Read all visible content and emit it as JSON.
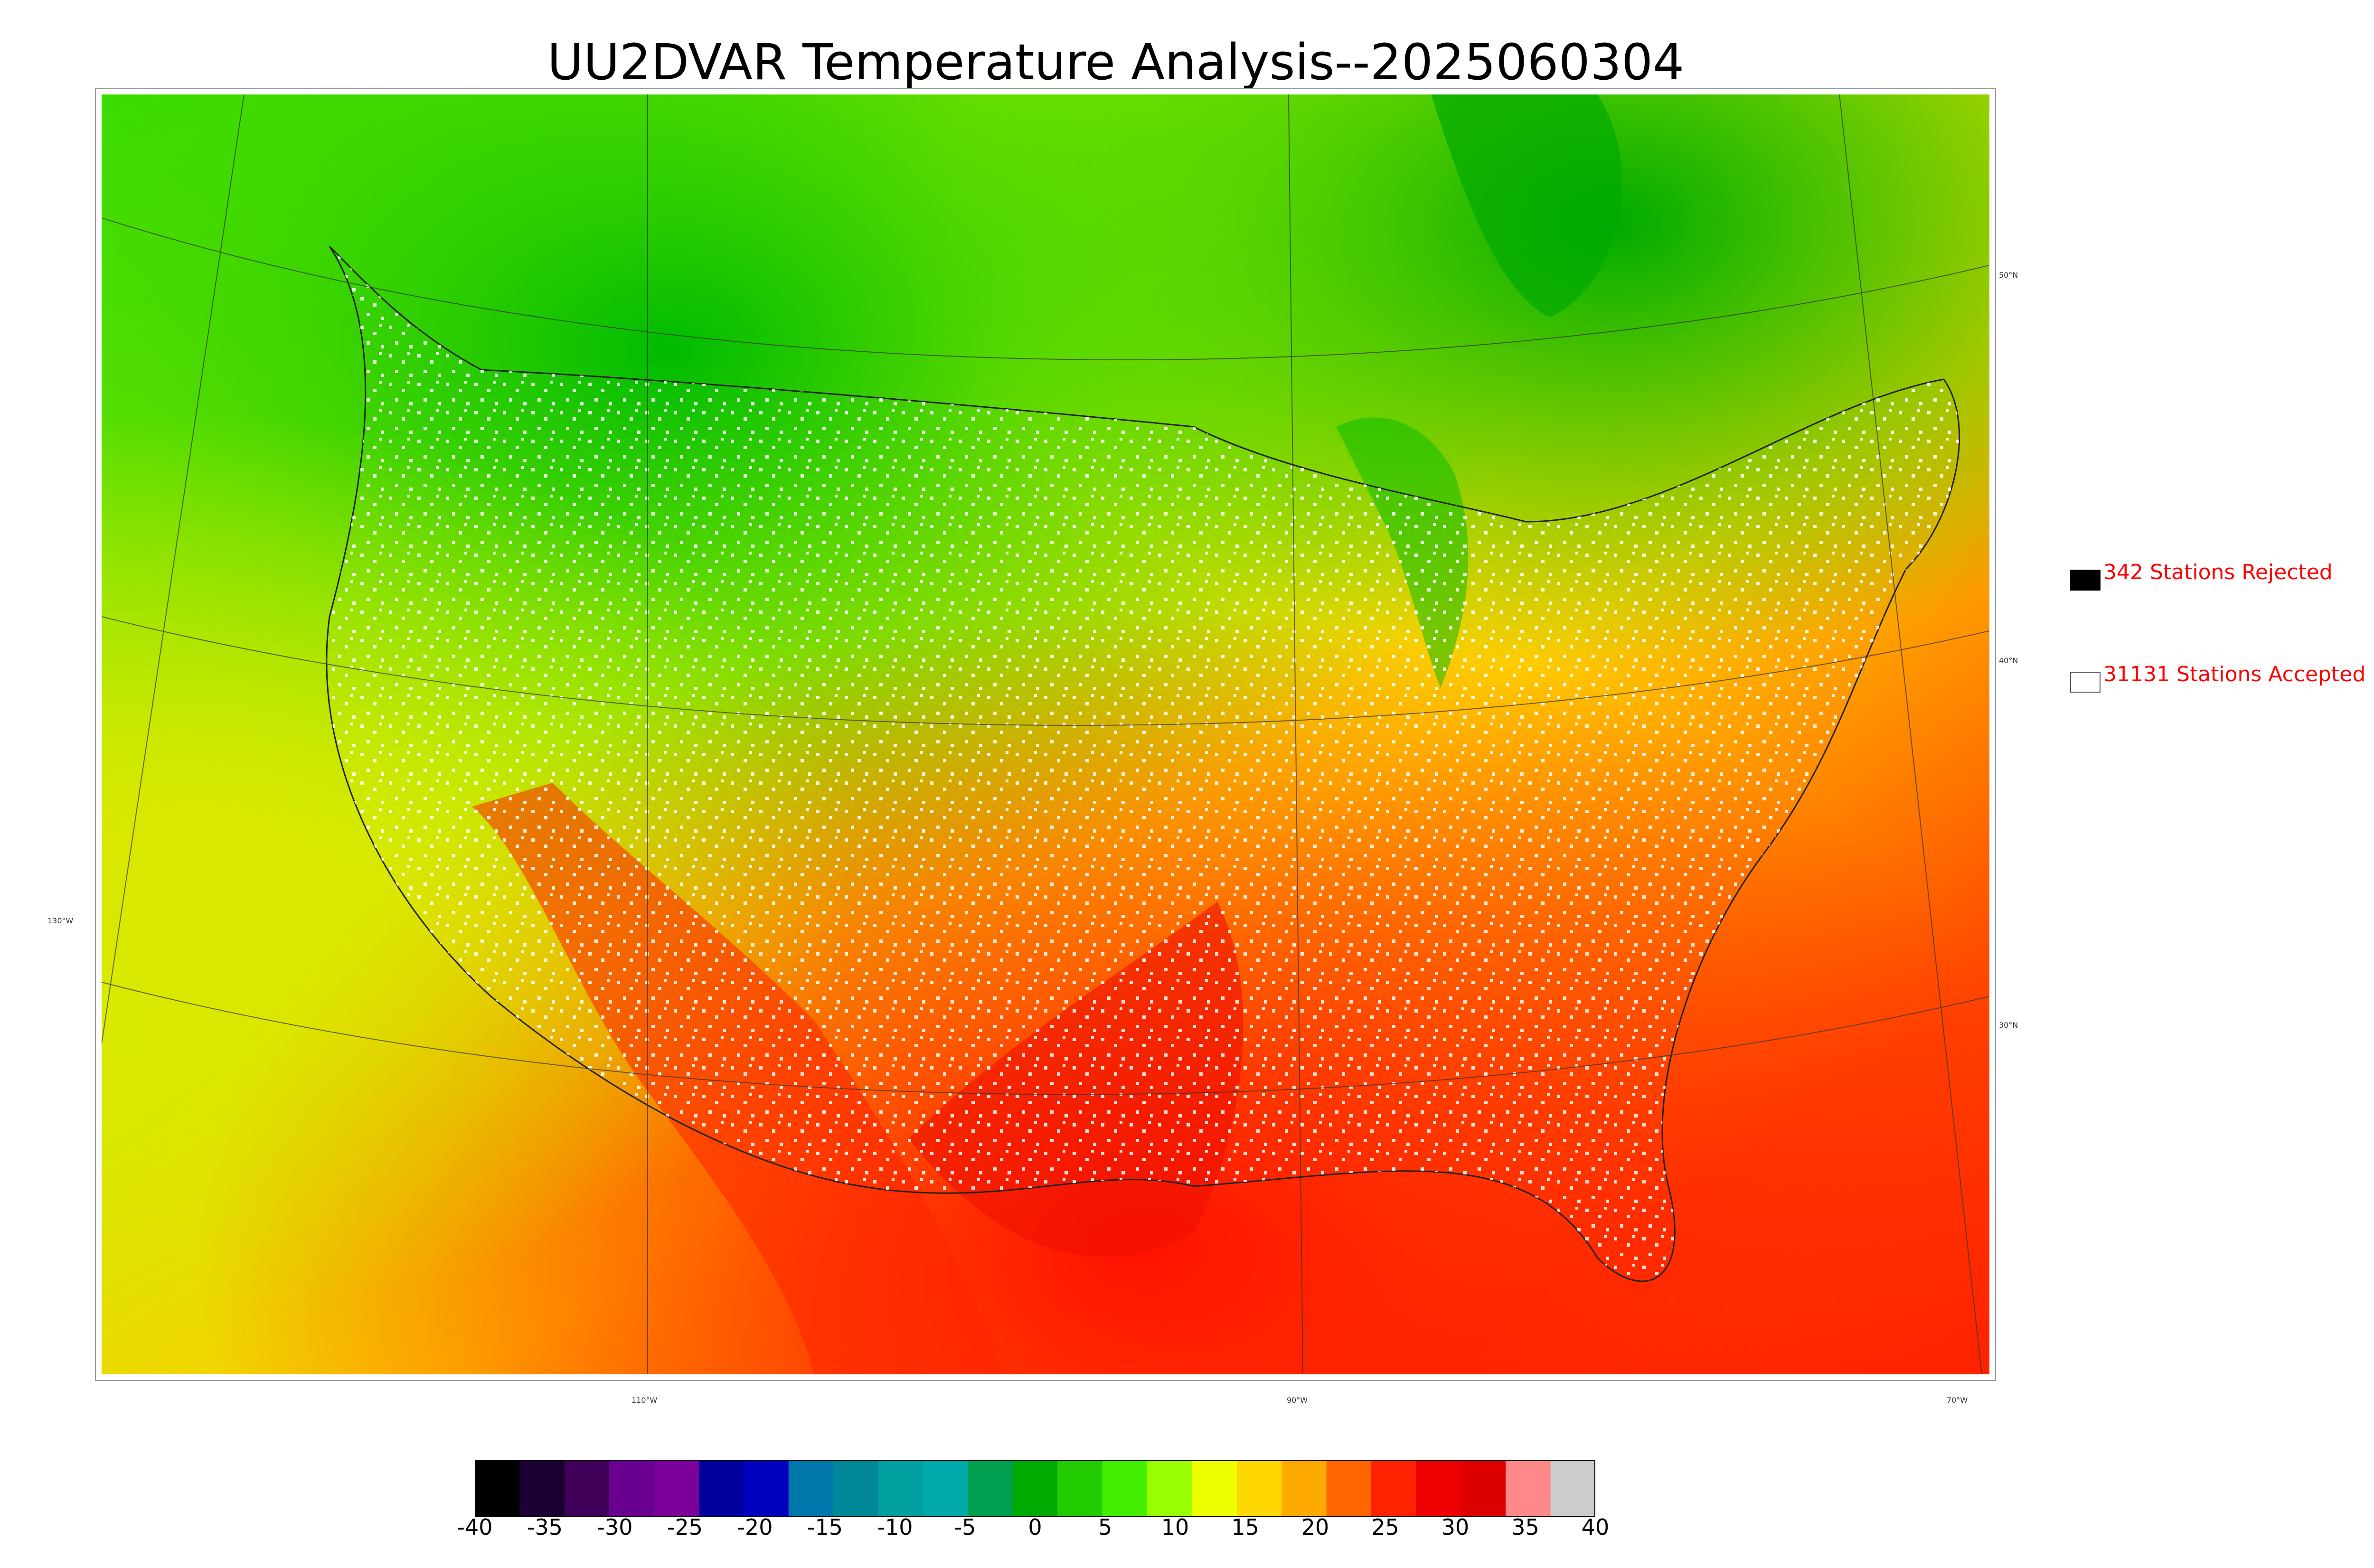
{
  "title": "UU2DVAR Temperature Analysis--2025060304",
  "legend": {
    "rejected": {
      "label": "342 Stations Rejected",
      "box_color": "#000000"
    },
    "accepted": {
      "label": "31131 Stations Accepted",
      "box_color": "#ffffff"
    },
    "text_color": "#ff0000"
  },
  "latitude_labels": [
    "50°N",
    "40°N",
    "30°N"
  ],
  "longitude_labels": [
    "130°W",
    "110°W",
    "90°W",
    "70°W"
  ],
  "colorbar": {
    "ticks": [
      "-40",
      "-35",
      "-30",
      "-25",
      "-20",
      "-15",
      "-10",
      "-5",
      "0",
      "5",
      "10",
      "15",
      "20",
      "25",
      "30",
      "35",
      "40"
    ],
    "colors": [
      "#000000",
      "#1a0033",
      "#40005a",
      "#6a0090",
      "#7a0099",
      "#00009f",
      "#0000bf",
      "#0077aa",
      "#008899",
      "#00a0a0",
      "#00aaaa",
      "#00a050",
      "#00aa00",
      "#22cc00",
      "#44ee00",
      "#99ff00",
      "#eeff00",
      "#ffd700",
      "#ffaa00",
      "#ff6600",
      "#ff2200",
      "#ee0000",
      "#dd0000",
      "#ff8888",
      "#cccccc"
    ]
  }
}
